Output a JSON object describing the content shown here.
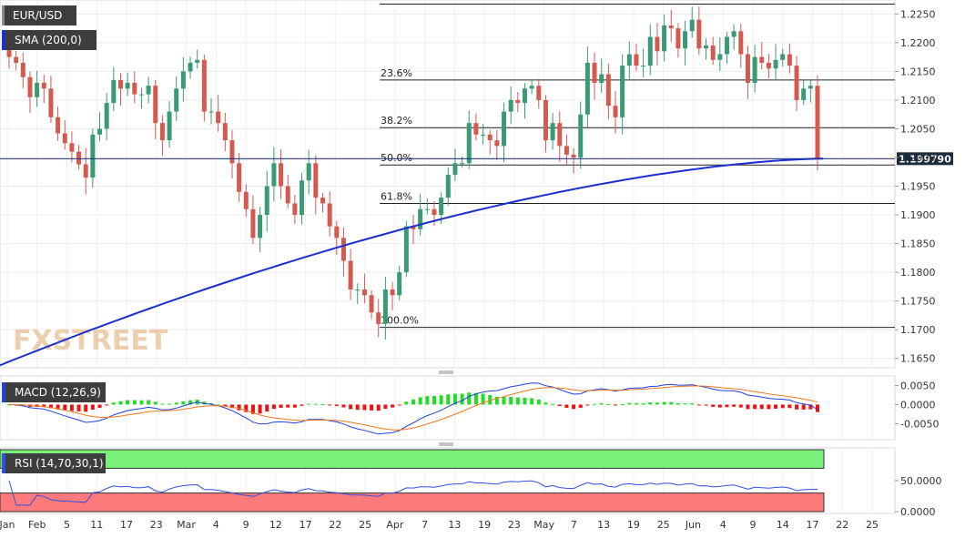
{
  "symbol": "EUR/USD",
  "indicator_label": "SMA (200,0)",
  "watermark": "FXSTREET",
  "colors": {
    "up": "#3a9a76",
    "down": "#d45a4f",
    "sma": "#1c2fd0",
    "macd_line": "#2040e0",
    "signal_line": "#f07820",
    "hist_pos": "#22dd22",
    "hist_neg": "#ee1111",
    "rsi_line": "#3050e0",
    "rsi_over": "#7af07a",
    "rsi_under": "#ff7a7a"
  },
  "price_axis": {
    "ticks": [
      "1.2250",
      "1.2200",
      "1.2150",
      "1.2100",
      "1.2050",
      "1.2000",
      "1.1950",
      "1.1900",
      "1.1850",
      "1.1800",
      "1.1750",
      "1.1700",
      "1.1650"
    ],
    "min": 1.164,
    "max": 1.2268,
    "current": "1.199790"
  },
  "fib_levels": [
    {
      "label": "23.6%",
      "price": 1.2135
    },
    {
      "label": "38.2%",
      "price": 1.2052
    },
    {
      "label": "50.0%",
      "price": 1.1987
    },
    {
      "label": "61.8%",
      "price": 1.192
    },
    {
      "label": "100.0%",
      "price": 1.1704
    }
  ],
  "x_axis_labels": [
    "Jan",
    "Feb",
    "5",
    "11",
    "17",
    "23",
    "Mar",
    "4",
    "9",
    "12",
    "17",
    "22",
    "25",
    "Apr",
    "7",
    "13",
    "19",
    "23",
    "May",
    "7",
    "13",
    "19",
    "25",
    "Jun",
    "4",
    "9",
    "14",
    "17",
    "22",
    "25"
  ],
  "macd": {
    "label": "MACD (12,26,9)",
    "ticks": [
      "0.0050",
      "0.0000",
      "-0.0050"
    ],
    "min": -0.0085,
    "max": 0.0068
  },
  "rsi": {
    "label": "RSI (14,70,30,1)",
    "ticks": [
      "50.0000",
      "0.0000"
    ],
    "min": 0,
    "max": 100,
    "upper": 70,
    "lower": 30
  },
  "chart_data": {
    "type": "candlestick",
    "title": "EUR/USD",
    "series_close": [
      1.2175,
      1.2165,
      1.214,
      1.2105,
      1.213,
      1.212,
      1.207,
      1.2042,
      1.2025,
      1.201,
      1.1988,
      1.1965,
      1.204,
      1.205,
      1.2095,
      1.2135,
      1.212,
      1.213,
      1.211,
      1.211,
      1.2125,
      1.206,
      1.203,
      1.208,
      1.212,
      1.215,
      1.2165,
      1.217,
      1.208,
      1.208,
      1.206,
      1.203,
      1.199,
      1.194,
      1.191,
      1.186,
      1.19,
      1.195,
      1.199,
      1.195,
      1.192,
      1.19,
      1.196,
      1.199,
      1.193,
      1.192,
      1.188,
      1.186,
      1.182,
      1.177,
      1.177,
      1.176,
      1.173,
      1.171,
      1.177,
      1.176,
      1.18,
      1.188,
      1.1875,
      1.191,
      1.191,
      1.19,
      1.193,
      1.197,
      1.199,
      1.199,
      1.206,
      1.204,
      1.204,
      1.203,
      1.202,
      1.208,
      1.21,
      1.2095,
      1.212,
      1.2125,
      1.21,
      1.203,
      1.206,
      1.202,
      1.2005,
      1.2,
      1.2075,
      1.2165,
      1.213,
      1.2145,
      1.209,
      1.207,
      1.216,
      1.218,
      1.216,
      1.216,
      1.221,
      1.2185,
      1.223,
      1.2225,
      1.219,
      1.222,
      1.224,
      1.219,
      1.2195,
      1.217,
      1.218,
      1.221,
      1.222,
      1.218,
      1.213,
      1.2175,
      1.2165,
      1.2155,
      1.217,
      1.218,
      1.216,
      1.21,
      1.212,
      1.2125,
      1.1998
    ],
    "sma200_last": 1.1998,
    "macd_last": -0.0022,
    "rsi_last": 36
  }
}
